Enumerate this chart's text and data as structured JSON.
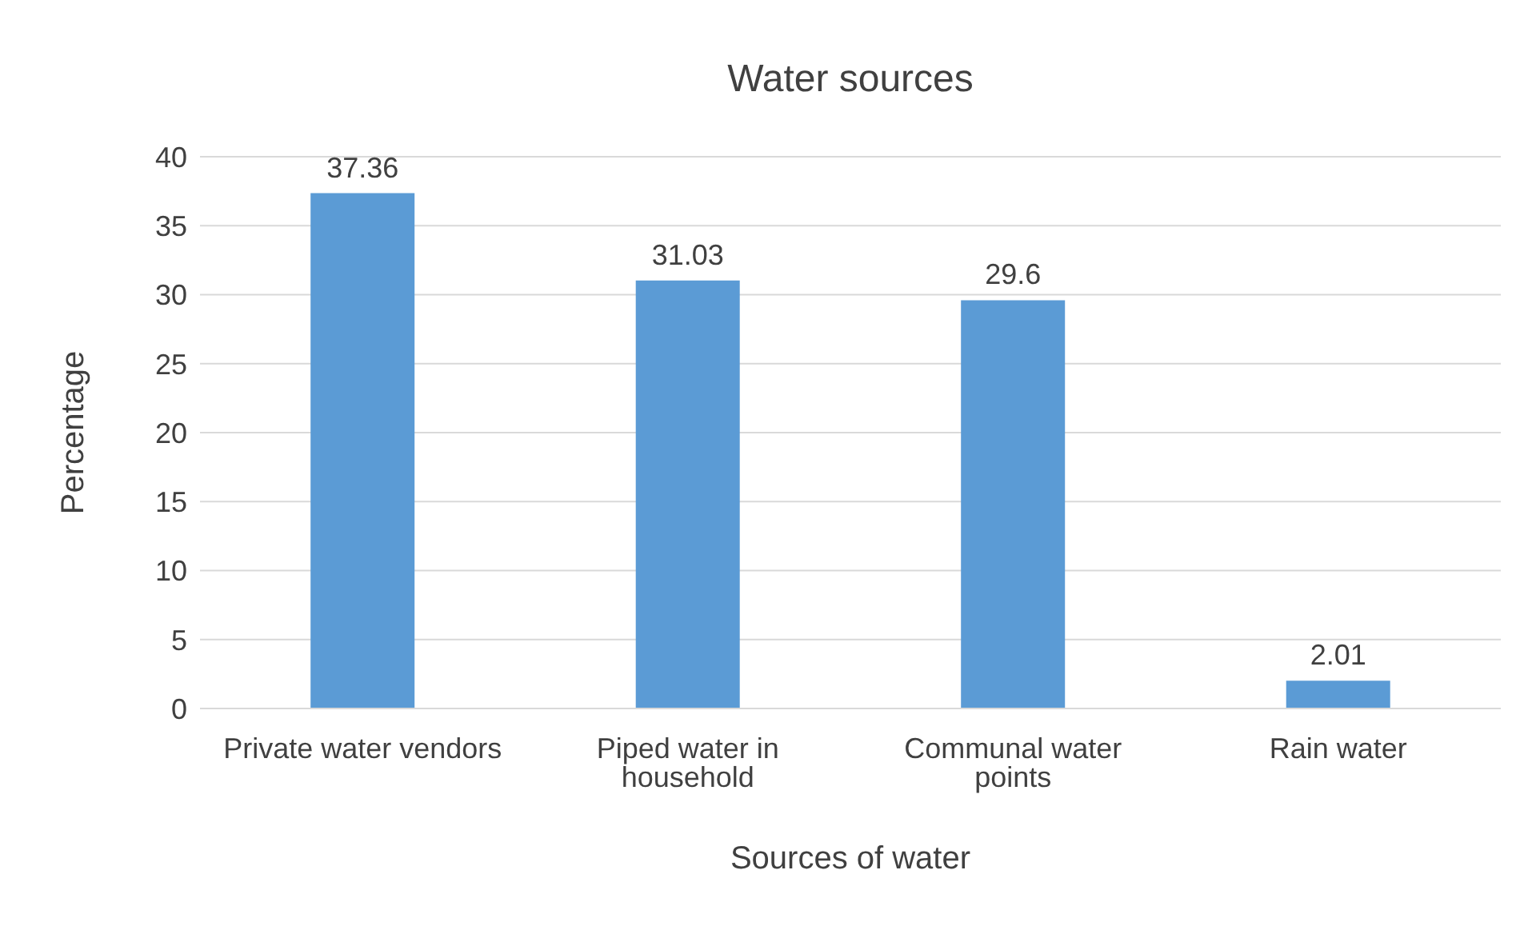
{
  "chart_data": {
    "type": "bar",
    "title": "Water sources",
    "xlabel": "Sources of water",
    "ylabel": "Percentage",
    "categories": [
      "Private water vendors",
      "Piped water in household",
      "Communal water points",
      "Rain water"
    ],
    "values": [
      37.36,
      31.03,
      29.6,
      2.01
    ],
    "color": "#5b9bd5",
    "ylim": [
      0,
      40
    ],
    "yticks": [
      0,
      5,
      10,
      15,
      20,
      25,
      30,
      35,
      40
    ],
    "grid": "y",
    "data_labels": true
  }
}
